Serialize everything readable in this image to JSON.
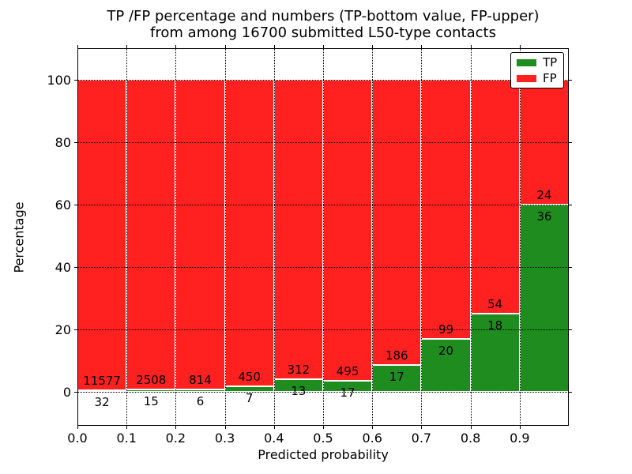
{
  "title": {
    "line1": "TP /FP percentage and numbers (TP-bottom value, FP-upper)",
    "line2": "from among 16700 submitted L50-type contacts"
  },
  "chart_data": {
    "type": "bar",
    "stacked": true,
    "normalized": "each bar scaled to 100%",
    "title": "TP /FP percentage and numbers (TP-bottom value, FP-upper)\nfrom among 16700 submitted L50-type contacts",
    "xlabel": "Predicted probability",
    "ylabel": "Percentage",
    "total_contacts": 16700,
    "xlim": [
      0.0,
      1.0
    ],
    "ylim": [
      -11,
      110
    ],
    "bin_width": 0.1,
    "x_ticks": [
      0.0,
      0.1,
      0.2,
      0.3,
      0.4,
      0.5,
      0.6,
      0.7,
      0.8,
      0.9
    ],
    "x_tick_labels": [
      "0.0",
      "0.1",
      "0.2",
      "0.3",
      "0.4",
      "0.5",
      "0.6",
      "0.7",
      "0.8",
      "0.9"
    ],
    "y_ticks": [
      0,
      20,
      40,
      60,
      80,
      100
    ],
    "y_tick_labels": [
      "0",
      "20",
      "40",
      "60",
      "80",
      "100"
    ],
    "grid": true,
    "annotation_note": "TP count below segment boundary, FP count above segment boundary",
    "bins": [
      {
        "x_start": 0.0,
        "tp": 32,
        "fp": 11577
      },
      {
        "x_start": 0.1,
        "tp": 15,
        "fp": 2508
      },
      {
        "x_start": 0.2,
        "tp": 6,
        "fp": 814
      },
      {
        "x_start": 0.3,
        "tp": 7,
        "fp": 450
      },
      {
        "x_start": 0.4,
        "tp": 13,
        "fp": 312
      },
      {
        "x_start": 0.5,
        "tp": 17,
        "fp": 495
      },
      {
        "x_start": 0.6,
        "tp": 17,
        "fp": 186
      },
      {
        "x_start": 0.7,
        "tp": 20,
        "fp": 99
      },
      {
        "x_start": 0.8,
        "tp": 18,
        "fp": 54
      },
      {
        "x_start": 0.9,
        "tp": 36,
        "fp": 24
      }
    ],
    "legend": {
      "position": "upper right",
      "entries": [
        {
          "label": "TP",
          "color": "#1f8c1f"
        },
        {
          "label": "FP",
          "color": "#ff2020"
        }
      ]
    }
  },
  "colors": {
    "tp": "#1f8c1f",
    "fp": "#ff2020",
    "bar_edge": "#ffffff",
    "grid": "#000000",
    "axes": "#000000",
    "background": "#ffffff"
  }
}
